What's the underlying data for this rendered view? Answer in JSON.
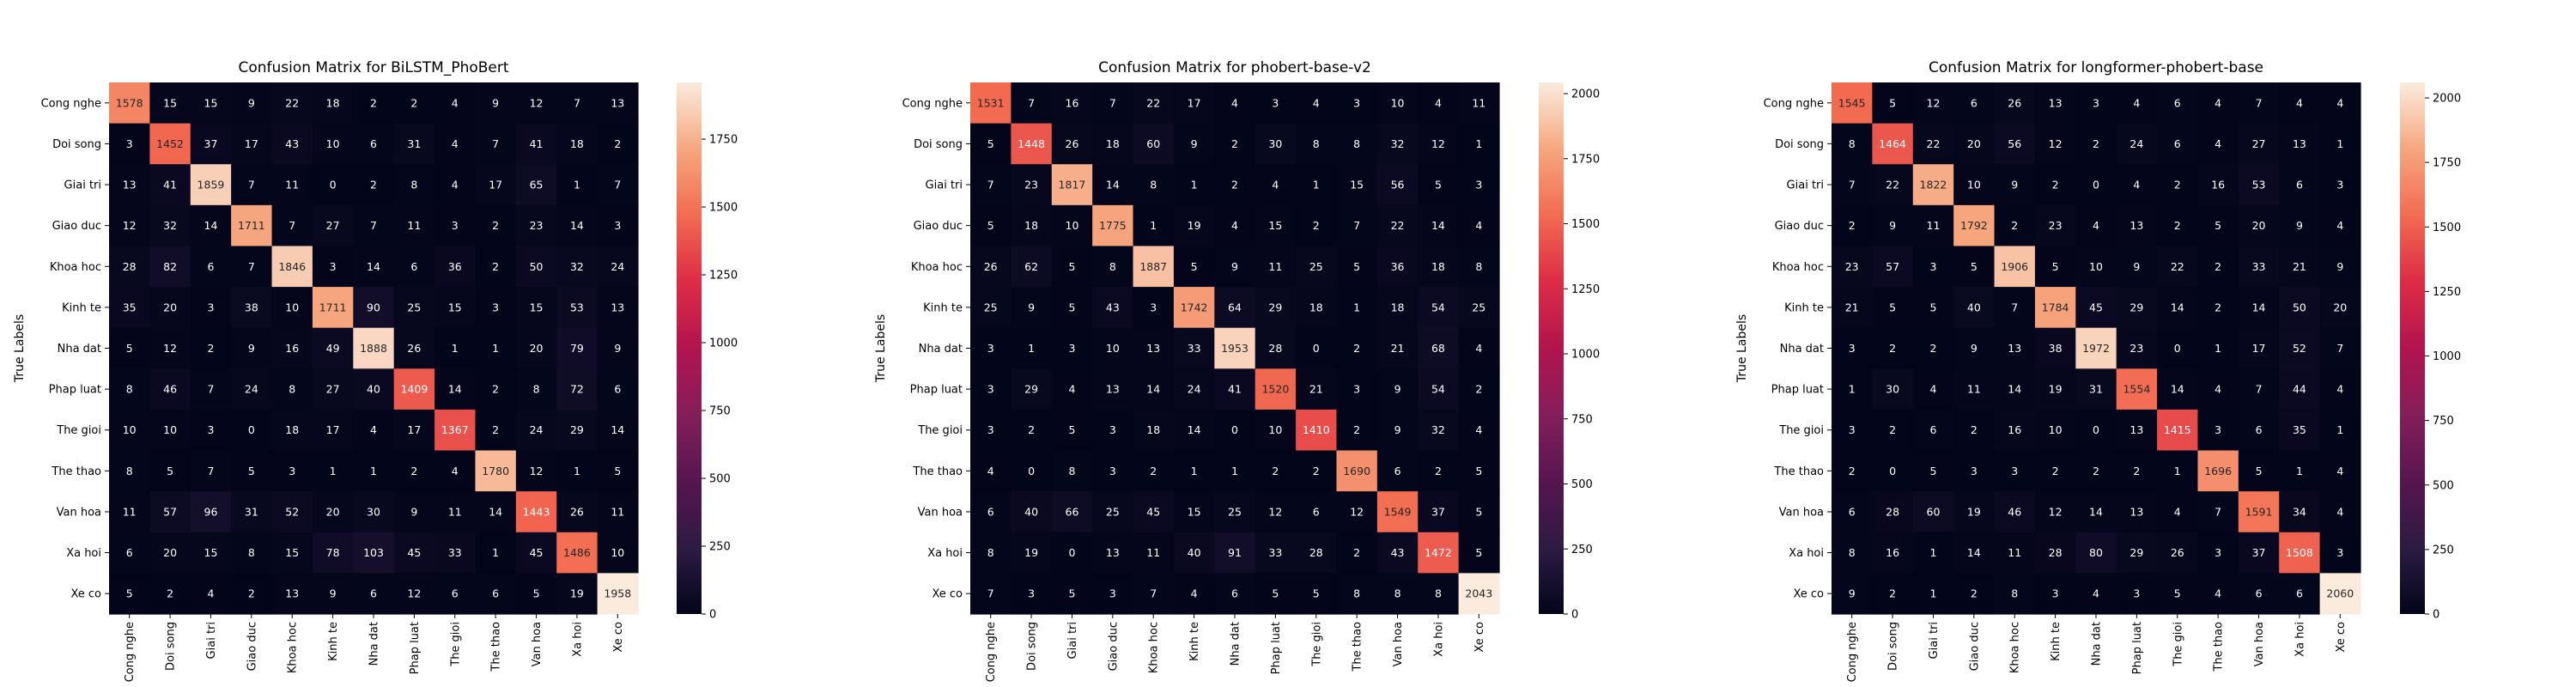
{
  "chart_data": [
    {
      "type": "heatmap",
      "title": "Confusion Matrix for BiLSTM_PhoBert",
      "ylabel": "True Labels",
      "xlabel": "",
      "labels": [
        "Cong nghe",
        "Doi song",
        "Giai tri",
        "Giao duc",
        "Khoa hoc",
        "Kinh te",
        "Nha dat",
        "Phap luat",
        "The gioi",
        "The thao",
        "Van hoa",
        "Xa hoi",
        "Xe co"
      ],
      "matrix": [
        [
          1578,
          15,
          15,
          9,
          22,
          18,
          2,
          2,
          4,
          9,
          12,
          7,
          13
        ],
        [
          3,
          1452,
          37,
          17,
          43,
          10,
          6,
          31,
          4,
          7,
          41,
          18,
          2
        ],
        [
          13,
          41,
          1859,
          7,
          11,
          0,
          2,
          8,
          4,
          17,
          65,
          1,
          7
        ],
        [
          12,
          32,
          14,
          1711,
          7,
          27,
          7,
          11,
          3,
          2,
          23,
          14,
          3
        ],
        [
          28,
          82,
          6,
          7,
          1846,
          3,
          14,
          6,
          36,
          2,
          50,
          32,
          24
        ],
        [
          35,
          20,
          3,
          38,
          10,
          1711,
          90,
          25,
          15,
          3,
          15,
          53,
          13
        ],
        [
          5,
          12,
          2,
          9,
          16,
          49,
          1888,
          26,
          1,
          1,
          20,
          79,
          9
        ],
        [
          8,
          46,
          7,
          24,
          8,
          27,
          40,
          1409,
          14,
          2,
          8,
          72,
          6
        ],
        [
          10,
          10,
          3,
          0,
          18,
          17,
          4,
          17,
          1367,
          2,
          24,
          29,
          14
        ],
        [
          8,
          5,
          7,
          5,
          3,
          1,
          1,
          2,
          4,
          1780,
          12,
          1,
          5
        ],
        [
          11,
          57,
          96,
          31,
          52,
          20,
          30,
          9,
          11,
          14,
          1443,
          26,
          11
        ],
        [
          6,
          20,
          15,
          8,
          15,
          78,
          103,
          45,
          33,
          1,
          45,
          1486,
          10
        ],
        [
          5,
          2,
          4,
          2,
          13,
          9,
          6,
          12,
          6,
          6,
          5,
          19,
          1958
        ]
      ],
      "vmin": 0,
      "vmax": 1959,
      "colorbar_ticks": [
        0,
        250,
        500,
        750,
        1000,
        1250,
        1500,
        1750
      ]
    },
    {
      "type": "heatmap",
      "title": "Confusion Matrix for phobert-base-v2",
      "ylabel": "True Labels",
      "xlabel": "",
      "labels": [
        "Cong nghe",
        "Doi song",
        "Giai tri",
        "Giao duc",
        "Khoa hoc",
        "Kinh te",
        "Nha dat",
        "Phap luat",
        "The gioi",
        "The thao",
        "Van hoa",
        "Xa hoi",
        "Xe co"
      ],
      "matrix": [
        [
          1531,
          7,
          16,
          7,
          22,
          17,
          4,
          3,
          4,
          3,
          10,
          4,
          11
        ],
        [
          5,
          1448,
          26,
          18,
          60,
          9,
          2,
          30,
          8,
          8,
          32,
          12,
          1
        ],
        [
          7,
          23,
          1817,
          14,
          8,
          1,
          2,
          4,
          1,
          15,
          56,
          5,
          3
        ],
        [
          5,
          18,
          10,
          1775,
          1,
          19,
          4,
          15,
          2,
          7,
          22,
          14,
          4
        ],
        [
          26,
          62,
          5,
          8,
          1887,
          5,
          9,
          11,
          25,
          5,
          36,
          18,
          8
        ],
        [
          25,
          9,
          5,
          43,
          3,
          1742,
          64,
          29,
          18,
          1,
          18,
          54,
          25
        ],
        [
          3,
          1,
          3,
          10,
          13,
          33,
          1953,
          28,
          0,
          2,
          21,
          68,
          4
        ],
        [
          3,
          29,
          4,
          13,
          14,
          24,
          41,
          1520,
          21,
          3,
          9,
          54,
          2
        ],
        [
          3,
          2,
          5,
          3,
          18,
          14,
          0,
          10,
          1410,
          2,
          9,
          32,
          4
        ],
        [
          4,
          0,
          8,
          3,
          2,
          1,
          1,
          2,
          2,
          1690,
          6,
          2,
          5
        ],
        [
          6,
          40,
          66,
          25,
          45,
          15,
          25,
          12,
          6,
          12,
          1549,
          37,
          5
        ],
        [
          8,
          19,
          0,
          13,
          11,
          40,
          91,
          33,
          28,
          2,
          43,
          1472,
          5
        ],
        [
          7,
          3,
          5,
          3,
          7,
          4,
          6,
          5,
          5,
          8,
          8,
          8,
          2043
        ]
      ],
      "vmin": 0,
      "vmax": 2043,
      "colorbar_ticks": [
        0,
        250,
        500,
        750,
        1000,
        1250,
        1500,
        1750,
        2000
      ]
    },
    {
      "type": "heatmap",
      "title": "Confusion Matrix for longformer-phobert-base",
      "ylabel": "True Labels",
      "xlabel": "",
      "labels": [
        "Cong nghe",
        "Doi song",
        "Giai tri",
        "Giao duc",
        "Khoa hoc",
        "Kinh te",
        "Nha dat",
        "Phap luat",
        "The gioi",
        "The thao",
        "Van hoa",
        "Xa hoi",
        "Xe co"
      ],
      "matrix": [
        [
          1545,
          5,
          12,
          6,
          26,
          13,
          3,
          4,
          6,
          4,
          7,
          4,
          4
        ],
        [
          8,
          1464,
          22,
          20,
          56,
          12,
          2,
          24,
          6,
          4,
          27,
          13,
          1
        ],
        [
          7,
          22,
          1822,
          10,
          9,
          2,
          0,
          4,
          2,
          16,
          53,
          6,
          3
        ],
        [
          2,
          9,
          11,
          1792,
          2,
          23,
          4,
          13,
          2,
          5,
          20,
          9,
          4
        ],
        [
          23,
          57,
          3,
          5,
          1906,
          5,
          10,
          9,
          22,
          2,
          33,
          21,
          9
        ],
        [
          21,
          5,
          5,
          40,
          7,
          1784,
          45,
          29,
          14,
          2,
          14,
          50,
          20
        ],
        [
          3,
          2,
          2,
          9,
          13,
          38,
          1972,
          23,
          0,
          1,
          17,
          52,
          7
        ],
        [
          1,
          30,
          4,
          11,
          14,
          19,
          31,
          1554,
          14,
          4,
          7,
          44,
          4
        ],
        [
          3,
          2,
          6,
          2,
          16,
          10,
          0,
          13,
          1415,
          3,
          6,
          35,
          1
        ],
        [
          2,
          0,
          5,
          3,
          3,
          2,
          2,
          2,
          1,
          1696,
          5,
          1,
          4
        ],
        [
          6,
          28,
          60,
          19,
          46,
          12,
          14,
          13,
          4,
          7,
          1591,
          34,
          4
        ],
        [
          8,
          16,
          1,
          14,
          11,
          28,
          80,
          29,
          26,
          3,
          37,
          1508,
          3
        ],
        [
          9,
          2,
          1,
          2,
          8,
          3,
          4,
          3,
          5,
          4,
          6,
          6,
          2060
        ]
      ],
      "vmin": 0,
      "vmax": 2060,
      "colorbar_ticks": [
        0,
        250,
        500,
        750,
        1000,
        1250,
        1500,
        1750,
        2000
      ]
    }
  ]
}
